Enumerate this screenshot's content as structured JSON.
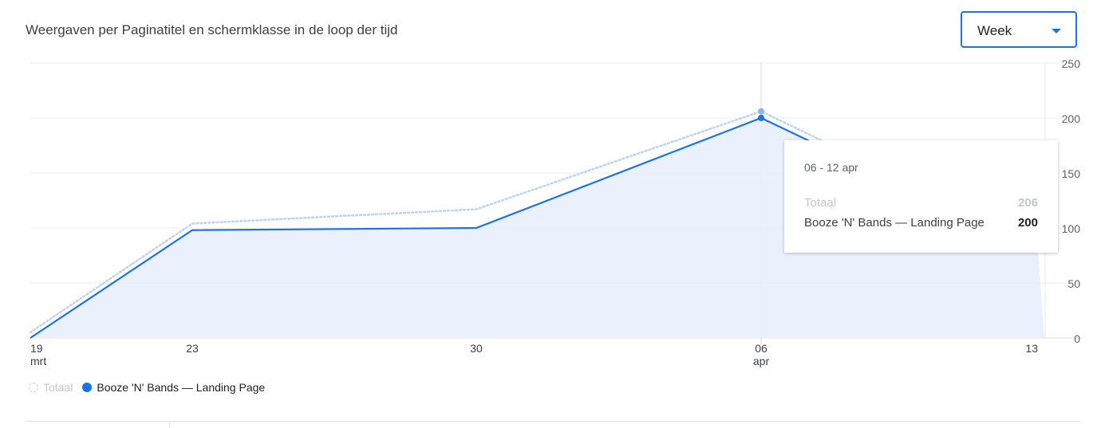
{
  "title": "Weergaven per Paginatitel en schermklasse in de loop der tijd",
  "dropdown": {
    "selected": "Week"
  },
  "chart_data": {
    "type": "area",
    "x": [
      "19 mrt",
      "23 mrt",
      "30 mrt",
      "06 apr",
      "13 apr"
    ],
    "x_tick_labels": [
      {
        "day": "19",
        "month": "mrt"
      },
      {
        "day": "23",
        "month": ""
      },
      {
        "day": "30",
        "month": ""
      },
      {
        "day": "06",
        "month": "apr"
      },
      {
        "day": "13",
        "month": ""
      }
    ],
    "series": [
      {
        "name": "Totaal",
        "values": [
          5,
          104,
          117,
          206,
          85
        ],
        "color": "#bcd3f5",
        "style": "dotted"
      },
      {
        "name": "Booze 'N' Bands — Landing Page",
        "values": [
          0,
          98,
          100,
          200,
          80
        ],
        "color": "#1a73e8",
        "style": "solid-area"
      }
    ],
    "ylim": [
      0,
      250
    ],
    "y_ticks": [
      0,
      50,
      100,
      150,
      200,
      250
    ],
    "y_axis_position": "right",
    "grid": true,
    "legend_position": "bottom-left",
    "highlight_index": 3
  },
  "tooltip": {
    "date": "06 - 12 apr",
    "rows": [
      {
        "label": "Totaal",
        "value": "206"
      },
      {
        "label": "Booze 'N' Bands — Landing Page",
        "value": "200"
      }
    ]
  },
  "legend": {
    "total_label": "Totaal",
    "series_label": "Booze 'N' Bands — Landing Page"
  }
}
